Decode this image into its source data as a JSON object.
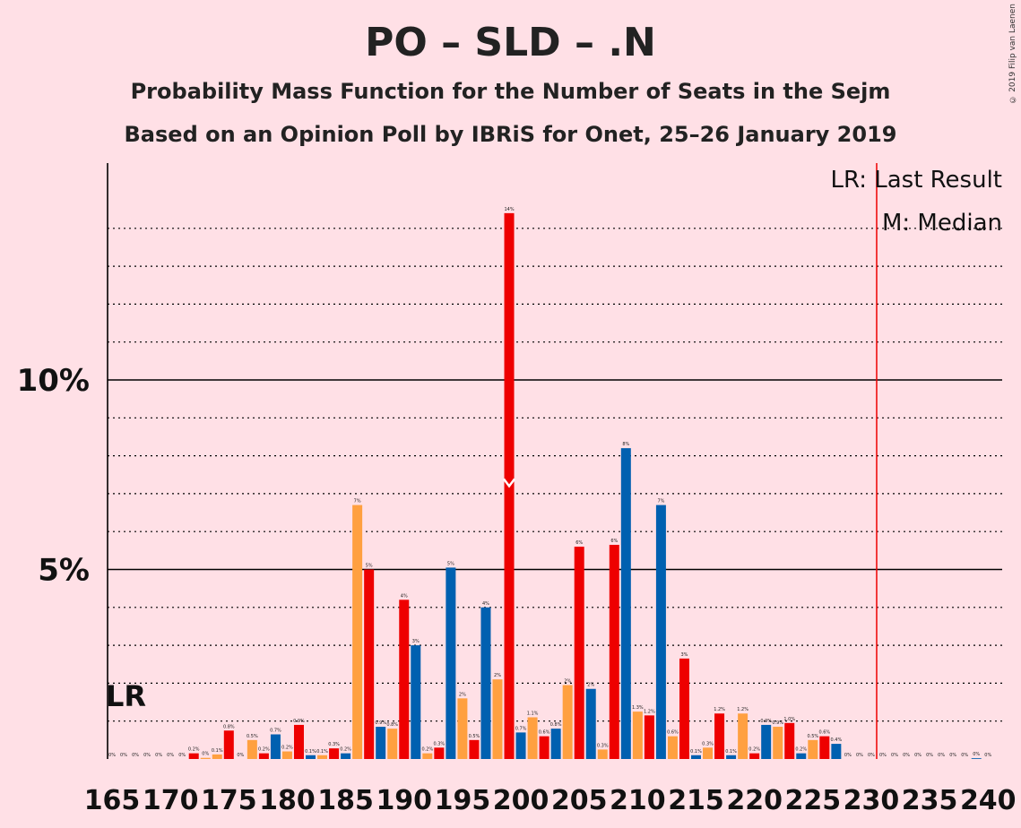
{
  "title": "PO – SLD – .N",
  "subtitle": "Probability Mass Function for the Number of Seats in the Sejm",
  "subtitle2": "Based on an Opinion Poll by IBRiS for Onet, 25–26 January 2019",
  "copyright": "© 2019 Filip van Laenen",
  "legend": {
    "lr": "LR: Last Result",
    "m": "M: Median"
  },
  "lr_marker": "LR",
  "colors": {
    "red": "#EE0000",
    "orange": "#FFA040",
    "blue": "#0060B0",
    "background": "#FFE0E6",
    "lr_line": "#EE0000"
  },
  "chart_data": {
    "type": "bar",
    "xlabel": "",
    "ylabel": "",
    "xlim": [
      165,
      240
    ],
    "ylim": [
      0,
      15.5
    ],
    "y_ticks": [
      {
        "value": 5,
        "label": "5%"
      },
      {
        "value": 10,
        "label": "10%"
      }
    ],
    "x_ticks": [
      165,
      170,
      175,
      180,
      185,
      190,
      195,
      200,
      205,
      210,
      215,
      220,
      225,
      230,
      235,
      240
    ],
    "last_result": 166,
    "median": 199,
    "majority_line": 231,
    "bars": [
      {
        "x": 165,
        "value": 0,
        "label": "0%",
        "color": "blue"
      },
      {
        "x": 166,
        "value": 0,
        "label": "0%",
        "color": "red"
      },
      {
        "x": 167,
        "value": 0,
        "label": "0%",
        "color": "orange"
      },
      {
        "x": 168,
        "value": 0,
        "label": "0%",
        "color": "blue"
      },
      {
        "x": 169,
        "value": 0,
        "label": "0%",
        "color": "red"
      },
      {
        "x": 170,
        "value": 0,
        "label": "0%",
        "color": "orange"
      },
      {
        "x": 171,
        "value": 0,
        "label": "0%",
        "color": "blue"
      },
      {
        "x": 172,
        "value": 0.15,
        "label": "0.2%",
        "color": "red"
      },
      {
        "x": 173,
        "value": 0.03,
        "label": "0%",
        "color": "orange"
      },
      {
        "x": 174,
        "value": 0.12,
        "label": "0.1%",
        "color": "orange"
      },
      {
        "x": 175,
        "value": 0.75,
        "label": "0.8%",
        "color": "red"
      },
      {
        "x": 176,
        "value": 0,
        "label": "0%",
        "color": "blue"
      },
      {
        "x": 177,
        "value": 0.5,
        "label": "0.5%",
        "color": "orange"
      },
      {
        "x": 178,
        "value": 0.15,
        "label": "0.2%",
        "color": "red"
      },
      {
        "x": 179,
        "value": 0.65,
        "label": "0.7%",
        "color": "blue"
      },
      {
        "x": 180,
        "value": 0.2,
        "label": "0.2%",
        "color": "orange"
      },
      {
        "x": 181,
        "value": 0.9,
        "label": "0.9%",
        "color": "red"
      },
      {
        "x": 182,
        "value": 0.1,
        "label": "0.1%",
        "color": "blue"
      },
      {
        "x": 183,
        "value": 0.1,
        "label": "0.1%",
        "color": "orange"
      },
      {
        "x": 184,
        "value": 0.28,
        "label": "0.3%",
        "color": "red"
      },
      {
        "x": 185,
        "value": 0.15,
        "label": "0.2%",
        "color": "blue"
      },
      {
        "x": 186,
        "value": 6.7,
        "label": "7%",
        "color": "orange"
      },
      {
        "x": 187,
        "value": 5.0,
        "label": "5%",
        "color": "red"
      },
      {
        "x": 188,
        "value": 0.85,
        "label": "0.9%",
        "color": "blue"
      },
      {
        "x": 189,
        "value": 0.8,
        "label": "0.8%",
        "color": "orange"
      },
      {
        "x": 190,
        "value": 4.2,
        "label": "4%",
        "color": "red"
      },
      {
        "x": 191,
        "value": 3.0,
        "label": "3%",
        "color": "blue"
      },
      {
        "x": 192,
        "value": 0.15,
        "label": "0.2%",
        "color": "orange"
      },
      {
        "x": 193,
        "value": 0.3,
        "label": "0.3%",
        "color": "red"
      },
      {
        "x": 194,
        "value": 5.05,
        "label": "5%",
        "color": "blue"
      },
      {
        "x": 195,
        "value": 1.6,
        "label": "2%",
        "color": "orange"
      },
      {
        "x": 196,
        "value": 0.5,
        "label": "0.5%",
        "color": "red"
      },
      {
        "x": 197,
        "value": 4.0,
        "label": "4%",
        "color": "blue"
      },
      {
        "x": 198,
        "value": 2.1,
        "label": "2%",
        "color": "orange"
      },
      {
        "x": 199,
        "value": 14.4,
        "label": "14%",
        "color": "red"
      },
      {
        "x": 200,
        "value": 0.7,
        "label": "0.7%",
        "color": "blue"
      },
      {
        "x": 201,
        "value": 1.1,
        "label": "1.1%",
        "color": "orange"
      },
      {
        "x": 202,
        "value": 0.6,
        "label": "0.6%",
        "color": "red"
      },
      {
        "x": 203,
        "value": 0.8,
        "label": "0.8%",
        "color": "blue"
      },
      {
        "x": 204,
        "value": 1.95,
        "label": "2%",
        "color": "orange"
      },
      {
        "x": 205,
        "value": 5.6,
        "label": "6%",
        "color": "red"
      },
      {
        "x": 206,
        "value": 1.85,
        "label": "2%",
        "color": "blue"
      },
      {
        "x": 207,
        "value": 0.25,
        "label": "0.3%",
        "color": "orange"
      },
      {
        "x": 208,
        "value": 5.65,
        "label": "6%",
        "color": "red"
      },
      {
        "x": 209,
        "value": 8.2,
        "label": "8%",
        "color": "blue"
      },
      {
        "x": 210,
        "value": 1.25,
        "label": "1.3%",
        "color": "orange"
      },
      {
        "x": 211,
        "value": 1.15,
        "label": "1.2%",
        "color": "red"
      },
      {
        "x": 212,
        "value": 6.7,
        "label": "7%",
        "color": "blue"
      },
      {
        "x": 213,
        "value": 0.6,
        "label": "0.6%",
        "color": "orange"
      },
      {
        "x": 214,
        "value": 2.65,
        "label": "3%",
        "color": "red"
      },
      {
        "x": 215,
        "value": 0.1,
        "label": "0.1%",
        "color": "blue"
      },
      {
        "x": 216,
        "value": 0.3,
        "label": "0.3%",
        "color": "orange"
      },
      {
        "x": 217,
        "value": 1.2,
        "label": "1.2%",
        "color": "red"
      },
      {
        "x": 218,
        "value": 0.1,
        "label": "0.1%",
        "color": "blue"
      },
      {
        "x": 219,
        "value": 1.2,
        "label": "1.2%",
        "color": "orange"
      },
      {
        "x": 220,
        "value": 0.15,
        "label": "0.2%",
        "color": "red"
      },
      {
        "x": 221,
        "value": 0.9,
        "label": "0.9%",
        "color": "blue"
      },
      {
        "x": 222,
        "value": 0.85,
        "label": "0.9%",
        "color": "orange"
      },
      {
        "x": 223,
        "value": 0.95,
        "label": "1.0%",
        "color": "red"
      },
      {
        "x": 224,
        "value": 0.15,
        "label": "0.2%",
        "color": "blue"
      },
      {
        "x": 225,
        "value": 0.5,
        "label": "0.5%",
        "color": "orange"
      },
      {
        "x": 226,
        "value": 0.6,
        "label": "0.6%",
        "color": "red"
      },
      {
        "x": 227,
        "value": 0.4,
        "label": "0.4%",
        "color": "blue"
      },
      {
        "x": 228,
        "value": 0,
        "label": "0%",
        "color": "orange"
      },
      {
        "x": 229,
        "value": 0,
        "label": "0%",
        "color": "red"
      },
      {
        "x": 230,
        "value": 0,
        "label": "0%",
        "color": "blue"
      },
      {
        "x": 231,
        "value": 0,
        "label": "0%",
        "color": "orange"
      },
      {
        "x": 232,
        "value": 0,
        "label": "0%",
        "color": "red"
      },
      {
        "x": 233,
        "value": 0,
        "label": "0%",
        "color": "blue"
      },
      {
        "x": 234,
        "value": 0,
        "label": "0%",
        "color": "orange"
      },
      {
        "x": 235,
        "value": 0,
        "label": "0%",
        "color": "red"
      },
      {
        "x": 236,
        "value": 0,
        "label": "0%",
        "color": "blue"
      },
      {
        "x": 237,
        "value": 0,
        "label": "0%",
        "color": "orange"
      },
      {
        "x": 238,
        "value": 0,
        "label": "0%",
        "color": "red"
      },
      {
        "x": 239,
        "value": 0.02,
        "label": "0%",
        "color": "blue"
      },
      {
        "x": 240,
        "value": 0,
        "label": "0%",
        "color": "orange"
      }
    ]
  }
}
